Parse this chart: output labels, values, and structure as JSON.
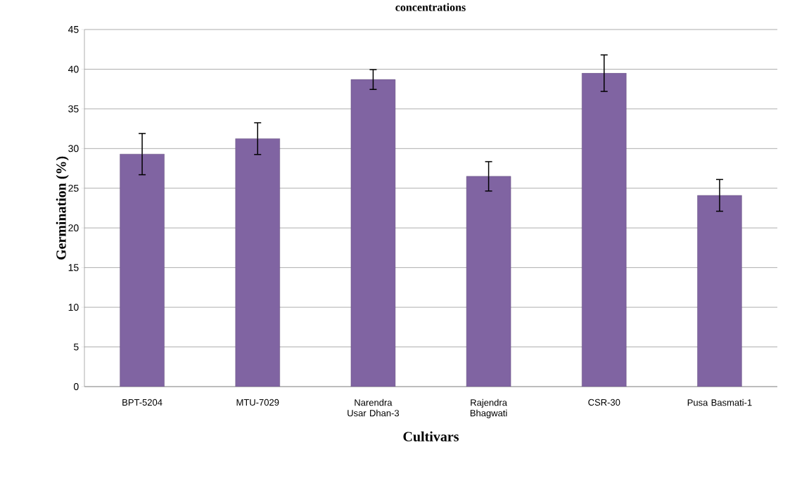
{
  "chart_data": {
    "type": "bar",
    "title": "concentrations",
    "xlabel": "Cultivars",
    "ylabel": "Germination (%)",
    "categories": [
      "BPT-5204",
      "MTU-7029",
      "Narendra Usar Dhan-3",
      "Rajendra Bhagwati",
      "CSR-30",
      "Pusa Basmati-1"
    ],
    "values": [
      29.3,
      31.25,
      38.7,
      26.5,
      39.5,
      24.1
    ],
    "errors": [
      2.6,
      2.0,
      1.25,
      1.85,
      2.3,
      2.0
    ],
    "color": "#8064a2",
    "ylim": [
      0,
      45
    ],
    "yticks": [
      0,
      5,
      10,
      15,
      20,
      25,
      30,
      35,
      40,
      45
    ],
    "grid": "y"
  }
}
